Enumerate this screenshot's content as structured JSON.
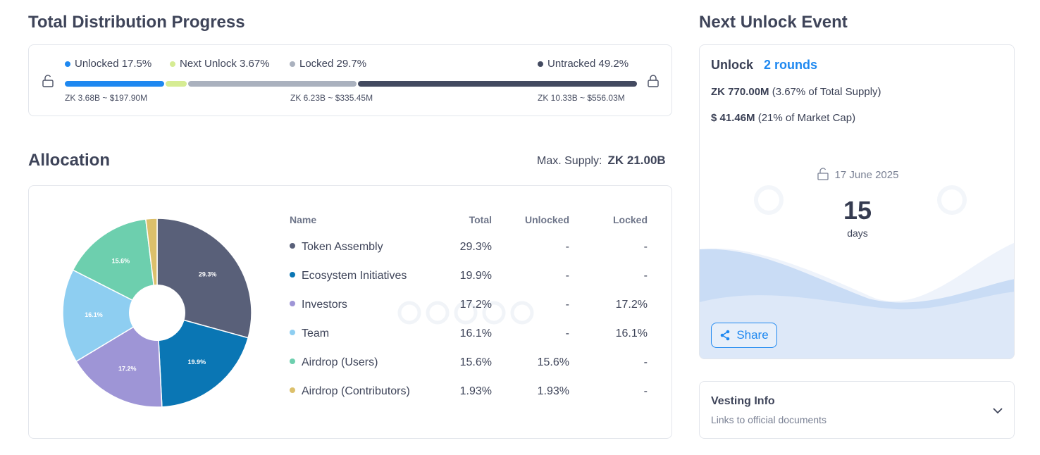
{
  "distribution": {
    "title": "Total Distribution Progress",
    "legend": [
      {
        "label": "Unlocked 17.5%",
        "color": "#1e88f0",
        "pct": 17.5
      },
      {
        "label": "Next Unlock 3.67%",
        "color": "#d6ec93",
        "pct": 3.67
      },
      {
        "label": "Locked 29.7%",
        "color": "#aab1be",
        "pct": 29.7
      },
      {
        "label": "Untracked 49.2%",
        "color": "#434a60",
        "pct": 49.2
      }
    ],
    "amounts": [
      "ZK 3.68B ~ $197.90M",
      "ZK 6.23B ~ $335.45M",
      "ZK 10.33B ~ $556.03M"
    ]
  },
  "allocation": {
    "title": "Allocation",
    "max_supply_label": "Max. Supply:",
    "max_supply_value": "ZK 21.00B",
    "columns": [
      "Name",
      "Total",
      "Unlocked",
      "Locked"
    ],
    "rows": [
      {
        "name": "Token Assembly",
        "total": "29.3%",
        "unlocked": "-",
        "locked": "-",
        "value": 29.3,
        "color": "#596079"
      },
      {
        "name": "Ecosystem Initiatives",
        "total": "19.9%",
        "unlocked": "-",
        "locked": "-",
        "value": 19.9,
        "color": "#0a76b4"
      },
      {
        "name": "Investors",
        "total": "17.2%",
        "unlocked": "-",
        "locked": "17.2%",
        "value": 17.2,
        "color": "#9e95d6"
      },
      {
        "name": "Team",
        "total": "16.1%",
        "unlocked": "-",
        "locked": "16.1%",
        "value": 16.1,
        "color": "#8ecef1"
      },
      {
        "name": "Airdrop (Users)",
        "total": "15.6%",
        "unlocked": "15.6%",
        "locked": "-",
        "value": 15.6,
        "color": "#6dcfae"
      },
      {
        "name": "Airdrop (Contributors)",
        "total": "1.93%",
        "unlocked": "1.93%",
        "locked": "-",
        "value": 1.93,
        "color": "#dcc06b"
      }
    ],
    "watermark": "cryptorank"
  },
  "next_unlock": {
    "title": "Next Unlock Event",
    "unlock_label": "Unlock",
    "rounds": "2 rounds",
    "amount_bold": "ZK 770.00M",
    "amount_rest": " (3.67% of Total Supply)",
    "usd_bold": "$ 41.46M",
    "usd_rest": " (21% of Market Cap)",
    "date": "17 June 2025",
    "countdown": "15",
    "countdown_unit": "days",
    "share": "Share"
  },
  "vesting": {
    "title": "Vesting Info",
    "subtitle": "Links to official documents"
  }
}
